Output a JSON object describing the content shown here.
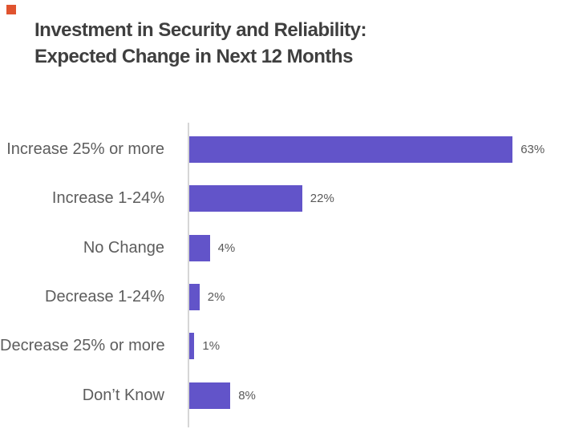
{
  "decoration": {
    "accent_square_color": "#e0532f"
  },
  "header": {
    "title_line1": "Investment in Security and Reliability:",
    "title_line2": "Expected Change in Next 12 Months"
  },
  "colors": {
    "title_text": "#3f3f3f",
    "bar_fill": "#6254c9",
    "axis_line": "#d6d6d6",
    "category_label_text": "#5d5d5d",
    "value_label_text": "#595959",
    "background": "#ffffff"
  },
  "chart_data": {
    "type": "bar",
    "orientation": "horizontal",
    "title": "Investment in Security and Reliability: Expected Change in Next 12 Months",
    "categories": [
      "Increase 25% or more",
      "Increase 1-24%",
      "No Change",
      "Decrease 1-24%",
      "Decrease 25% or more",
      "Don’t Know"
    ],
    "values": [
      63,
      22,
      4,
      2,
      1,
      8
    ],
    "value_labels": [
      "63%",
      "22%",
      "4%",
      "2%",
      "1%",
      "8%"
    ],
    "unit": "%",
    "xlabel": "",
    "ylabel": "",
    "xlim": [
      0,
      75
    ],
    "grid": false,
    "legend": false,
    "axis_ticks_visible": false
  }
}
